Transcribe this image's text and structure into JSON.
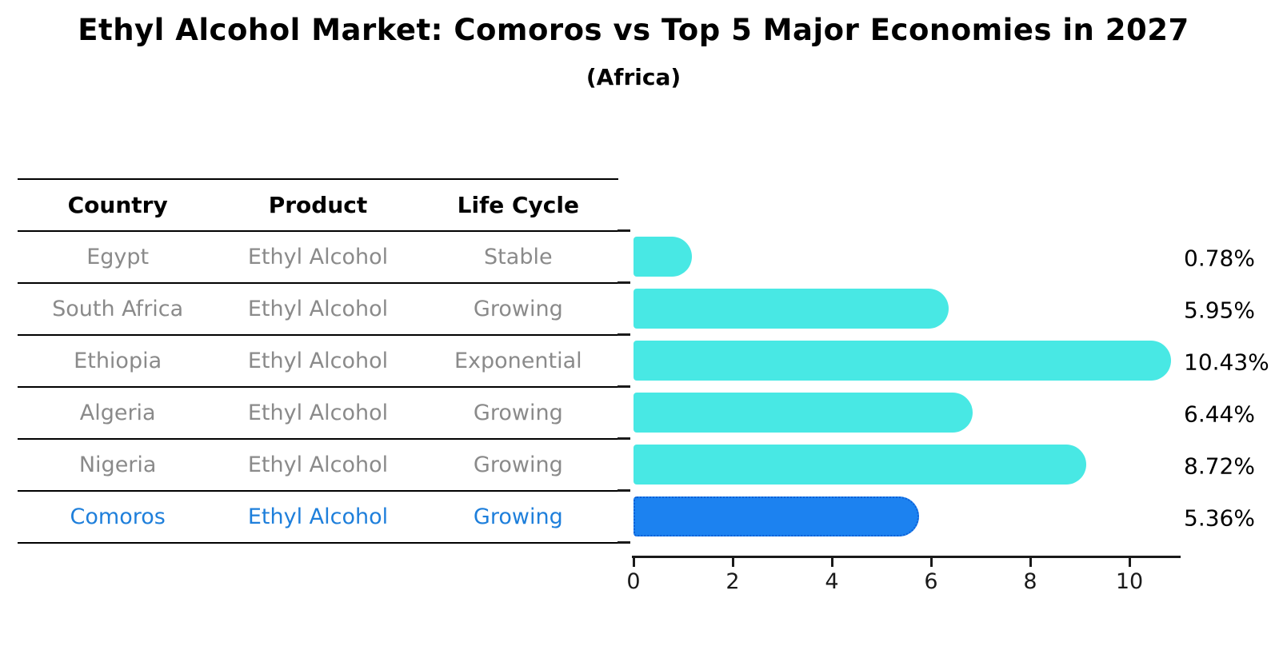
{
  "title": "Ethyl Alcohol Market: Comoros vs Top 5 Major Economies in 2027",
  "subtitle": "(Africa)",
  "table": {
    "headers": {
      "country": "Country",
      "product": "Product",
      "life_cycle": "Life Cycle"
    },
    "rows": [
      {
        "country": "Egypt",
        "product": "Ethyl Alcohol",
        "life_cycle": "Stable"
      },
      {
        "country": "South Africa",
        "product": "Ethyl Alcohol",
        "life_cycle": "Growing"
      },
      {
        "country": "Ethiopia",
        "product": "Ethyl Alcohol",
        "life_cycle": "Exponential"
      },
      {
        "country": "Algeria",
        "product": "Ethyl Alcohol",
        "life_cycle": "Growing"
      },
      {
        "country": "Nigeria",
        "product": "Ethyl Alcohol",
        "life_cycle": "Growing"
      },
      {
        "country": "Comoros",
        "product": "Ethyl Alcohol",
        "life_cycle": "Growing"
      }
    ]
  },
  "chart_data": {
    "type": "bar",
    "orientation": "horizontal",
    "title": "Ethyl Alcohol Market: Comoros vs Top 5 Major Economies in 2027",
    "subtitle": "(Africa)",
    "categories": [
      "Egypt",
      "South Africa",
      "Ethiopia",
      "Algeria",
      "Nigeria",
      "Comoros"
    ],
    "values": [
      0.78,
      5.95,
      10.43,
      6.44,
      8.72,
      5.36
    ],
    "value_labels": [
      "0.78%",
      "5.95%",
      "10.43%",
      "6.44%",
      "8.72%",
      "5.36%"
    ],
    "x_ticks": [
      0,
      2,
      4,
      6,
      8,
      10
    ],
    "x_tick_labels": [
      "0",
      "2",
      "4",
      "6",
      "8",
      "10"
    ],
    "xlim": [
      0,
      11
    ],
    "grid": false,
    "legend": false,
    "bar_color": "#48e8e4",
    "highlight_color": "#1c82f0",
    "highlight_edge_color": "#0d5fd6",
    "highlight_text_color": "#1e7fdb",
    "highlight_index": 5
  }
}
